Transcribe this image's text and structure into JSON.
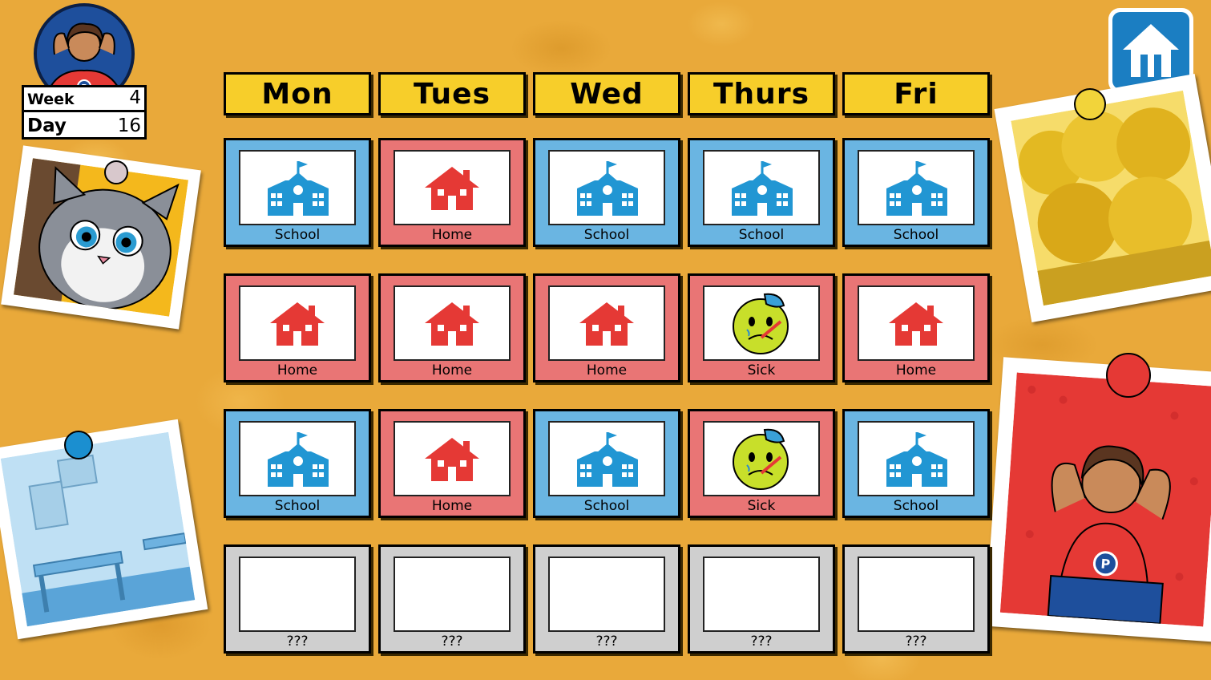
{
  "stats": {
    "week_label": "Week",
    "week_value": "4",
    "day_label": "Day",
    "day_value": "16"
  },
  "home_button": {
    "icon": "home-icon",
    "color": "#1b7ec2"
  },
  "days": [
    "Mon",
    "Tues",
    "Wed",
    "Thurs",
    "Fri"
  ],
  "grid": [
    [
      {
        "type": "school",
        "label": "School"
      },
      {
        "type": "home",
        "label": "Home"
      },
      {
        "type": "school",
        "label": "School"
      },
      {
        "type": "school",
        "label": "School"
      },
      {
        "type": "school",
        "label": "School"
      }
    ],
    [
      {
        "type": "home",
        "label": "Home"
      },
      {
        "type": "home",
        "label": "Home"
      },
      {
        "type": "home",
        "label": "Home"
      },
      {
        "type": "sick",
        "label": "Sick"
      },
      {
        "type": "home",
        "label": "Home"
      }
    ],
    [
      {
        "type": "school",
        "label": "School"
      },
      {
        "type": "home",
        "label": "Home"
      },
      {
        "type": "school",
        "label": "School"
      },
      {
        "type": "sick",
        "label": "Sick"
      },
      {
        "type": "school",
        "label": "School"
      }
    ],
    [
      {
        "type": "unknown",
        "label": "???"
      },
      {
        "type": "unknown",
        "label": "???"
      },
      {
        "type": "unknown",
        "label": "???"
      },
      {
        "type": "unknown",
        "label": "???"
      },
      {
        "type": "unknown",
        "label": "???"
      }
    ]
  ],
  "colors": {
    "school_card": "#6ab5e2",
    "home_card": "#e97575",
    "unknown_card": "#cfcfcf",
    "header": "#f7ce2a",
    "school_icon": "#2196d3",
    "home_icon": "#e53935",
    "background": "#e9a93a"
  },
  "photos": [
    "cat-photo",
    "classroom-photo",
    "autumn-trees-photo",
    "character-photo"
  ]
}
